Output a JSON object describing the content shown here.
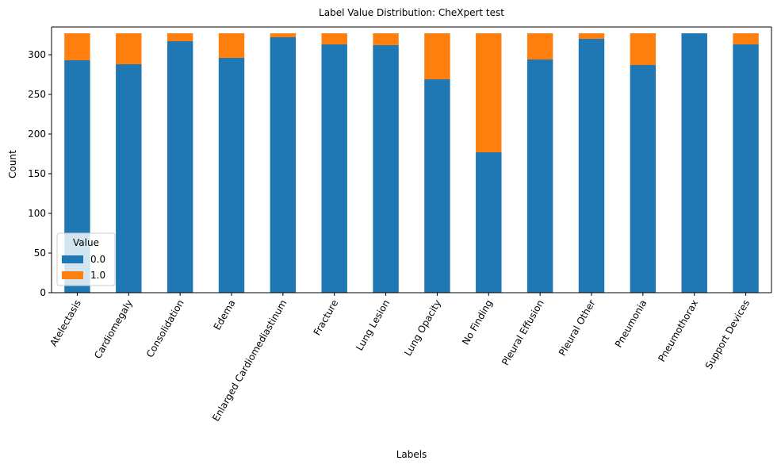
{
  "chart_data": {
    "type": "bar",
    "stacked": true,
    "title": "Label Value Distribution: CheXpert test",
    "xlabel": "Labels",
    "ylabel": "Count",
    "ylim": [
      0,
      335
    ],
    "yticks": [
      0,
      50,
      100,
      150,
      200,
      250,
      300
    ],
    "grid": false,
    "legend": {
      "title": "Value",
      "placement": "lower-left"
    },
    "categories": [
      "Atelectasis",
      "Cardiomegaly",
      "Consolidation",
      "Edema",
      "Enlarged Cardiomediastinum",
      "Fracture",
      "Lung Lesion",
      "Lung Opacity",
      "No Finding",
      "Pleural Effusion",
      "Pleural Other",
      "Pneumonia",
      "Pneumothorax",
      "Support Devices"
    ],
    "series": [
      {
        "name": "0.0",
        "color": "#1f77b4",
        "values": [
          293,
          288,
          317,
          296,
          322,
          313,
          312,
          269,
          177,
          294,
          320,
          287,
          327,
          313
        ]
      },
      {
        "name": "1.0",
        "color": "#ff7f0e",
        "values": [
          34,
          39,
          10,
          31,
          5,
          14,
          15,
          58,
          150,
          33,
          7,
          40,
          0,
          14
        ]
      }
    ]
  }
}
